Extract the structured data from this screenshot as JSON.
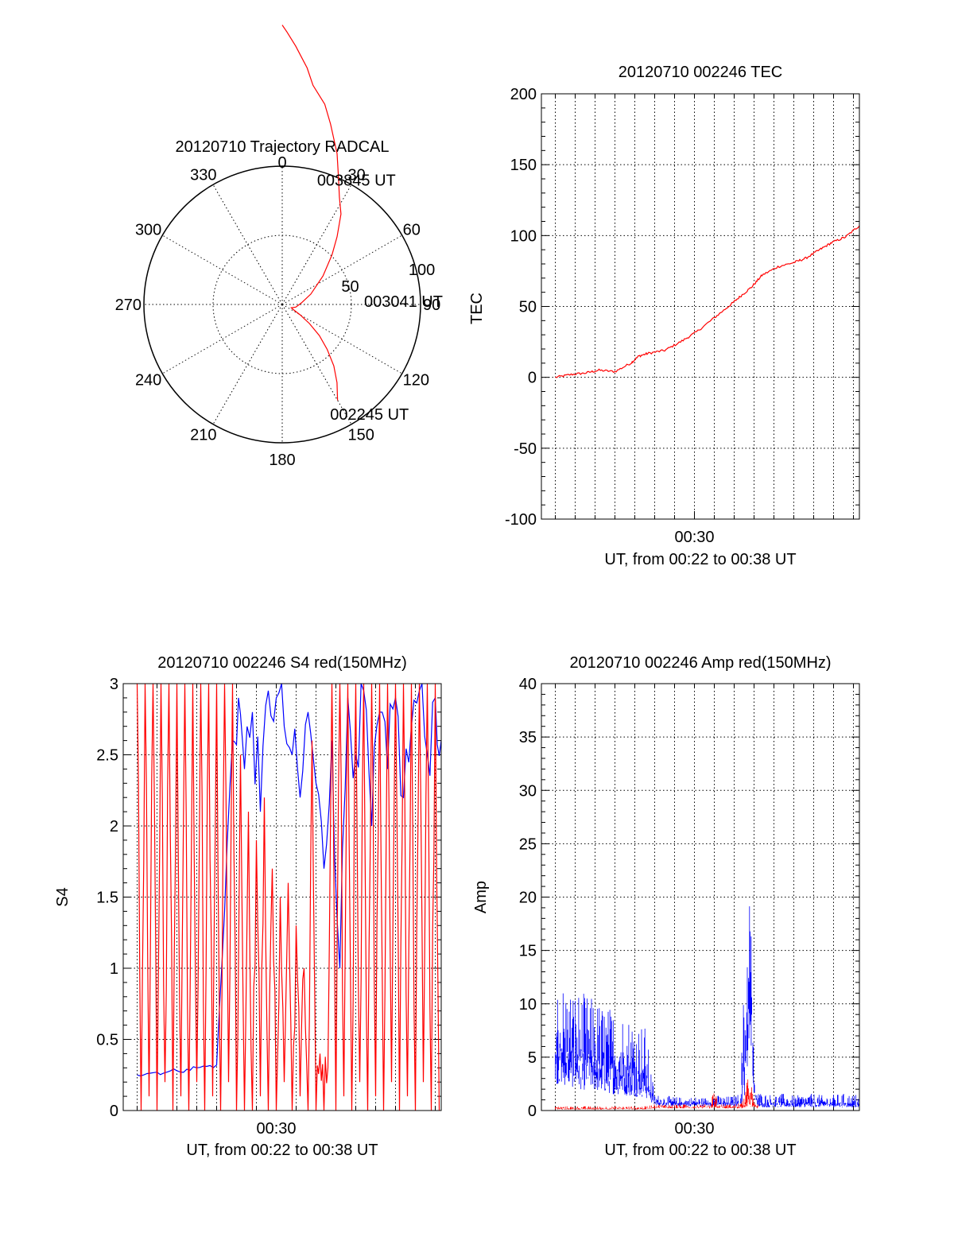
{
  "chart_data": [
    {
      "type": "polar",
      "title": "20120710 Trajectory RADCAL",
      "azimuth_labels": [
        "0",
        "30",
        "60",
        "90",
        "120",
        "150",
        "180",
        "210",
        "240",
        "270",
        "300",
        "330"
      ],
      "radial_labels": [
        "50",
        "100"
      ],
      "series": [
        {
          "color": "#ff0000",
          "points": [
            [
              150,
              80
            ],
            [
              145,
              69
            ],
            [
              140,
              58
            ],
            [
              135,
              46
            ],
            [
              130,
              35
            ],
            [
              125,
              24
            ],
            [
              120,
              15
            ],
            [
              115,
              9
            ],
            [
              110,
              7
            ],
            [
              101,
              10
            ],
            [
              85,
              14
            ],
            [
              70,
              22
            ],
            [
              55,
              36
            ],
            [
              45,
              51
            ],
            [
              39,
              63
            ],
            [
              33,
              78
            ],
            [
              28,
              88
            ],
            [
              24,
              100
            ],
            [
              20,
              116
            ],
            [
              15,
              135
            ],
            [
              12,
              148
            ],
            [
              8,
              160
            ],
            [
              6,
              172
            ],
            [
              3,
              187
            ],
            [
              1,
              197
            ],
            [
              0,
              202
            ]
          ]
        }
      ],
      "annotations": [
        {
          "text": "003845 UT",
          "az": 19,
          "r": 95
        },
        {
          "text": "003041 UT",
          "az": 88,
          "r": 65
        },
        {
          "text": "002245 UT",
          "az": 153,
          "r": 89
        }
      ]
    },
    {
      "type": "line",
      "title": "20120710 002246 TEC",
      "xlabel": "UT, from 00:22 to 00:38 UT",
      "ylabel": "TEC",
      "xlim": [
        22.3,
        38.3
      ],
      "ylim": [
        -100,
        200
      ],
      "yticks": [
        "200",
        "150",
        "100",
        "50",
        "0",
        "-50",
        "-100"
      ],
      "xticks": [
        {
          "label": "00:30",
          "value": 30
        }
      ],
      "series": [
        {
          "color": "#ff0000",
          "x": [
            23.0,
            23.8,
            24.5,
            25.2,
            26.0,
            26.8,
            27.2,
            27.7,
            28.5,
            29.3,
            30.1,
            31.0,
            31.8,
            32.3,
            32.9,
            33.4,
            34.2,
            35.0,
            35.6,
            36.3,
            36.9,
            37.6,
            38.3
          ],
          "y": [
            0,
            2,
            3,
            5,
            4,
            10,
            15,
            17,
            19,
            25,
            32,
            42,
            51,
            57,
            64,
            72,
            78,
            81,
            84,
            90,
            95,
            99,
            107
          ]
        }
      ]
    },
    {
      "type": "line",
      "title": "20120710 002246 S4 red(150MHz)",
      "xlabel": "UT, from 00:22 to 00:38 UT",
      "ylabel": "S4",
      "xlim": [
        22.3,
        38.3
      ],
      "ylim": [
        0,
        3
      ],
      "yticks": [
        "3",
        "2.5",
        "2",
        "1.5",
        "1",
        "0.5",
        "0"
      ],
      "xticks": [
        {
          "label": "00:30",
          "value": 30
        }
      ],
      "series": [
        {
          "color": "#0000ff",
          "x": [
            23.0,
            23.5,
            24.0,
            24.5,
            25.0,
            25.5,
            26.0,
            26.5,
            27.0,
            27.4,
            27.8,
            28.1,
            28.4,
            28.8,
            29.2,
            29.6,
            30.0,
            30.4,
            30.8,
            31.2,
            31.6,
            32.0,
            32.4,
            32.8,
            33.2,
            33.6,
            34.0,
            34.4,
            34.8,
            35.2,
            35.6,
            36.0,
            36.4,
            36.8,
            37.2,
            37.6,
            38.0,
            38.3
          ],
          "y": [
            0.25,
            0.26,
            0.27,
            0.27,
            0.28,
            0.29,
            0.3,
            0.31,
            0.32,
            1.4,
            2.6,
            2.9,
            2.4,
            2.8,
            2.1,
            2.95,
            2.9,
            2.7,
            2.5,
            2.2,
            2.8,
            2.3,
            1.7,
            2.6,
            1.0,
            2.9,
            2.5,
            2.95,
            2.0,
            2.8,
            2.4,
            2.9,
            2.2,
            2.7,
            2.95,
            2.5,
            2.9,
            2.6
          ]
        },
        {
          "color": "#ff0000",
          "x": [
            23.0,
            23.2,
            23.4,
            23.6,
            23.8,
            24.0,
            24.2,
            24.4,
            24.6,
            24.8,
            25.0,
            25.2,
            25.4,
            25.6,
            25.8,
            26.0,
            26.2,
            26.4,
            26.6,
            26.8,
            27.0,
            27.2,
            27.4,
            27.6,
            27.8,
            28.0,
            28.2,
            28.4,
            28.6,
            28.8,
            29.0,
            29.2,
            29.4,
            29.6,
            29.8,
            30.0,
            30.2,
            30.4,
            30.6,
            30.8,
            31.0,
            31.2,
            31.4,
            31.6,
            31.8,
            32.0,
            32.2,
            32.4,
            32.6,
            32.8,
            33.0,
            33.2,
            33.4,
            33.6,
            33.8,
            34.0,
            34.2,
            34.4,
            34.6,
            34.8,
            35.0,
            35.2,
            35.4,
            35.6,
            35.8,
            36.0,
            36.2,
            36.4,
            36.6,
            36.8,
            37.0,
            37.2,
            37.4,
            37.6,
            37.8,
            38.0,
            38.2
          ],
          "y": [
            3,
            0,
            3,
            0.1,
            3,
            0,
            3,
            0.2,
            3,
            0,
            3,
            0.1,
            3,
            0,
            3,
            0.2,
            3,
            0,
            3,
            0.1,
            3,
            0,
            3,
            0.2,
            3,
            0,
            2.5,
            0,
            2.1,
            0,
            1.9,
            0.1,
            2.2,
            0,
            1.7,
            0,
            1.5,
            0.2,
            1.6,
            0,
            1.3,
            0.1,
            1.0,
            0,
            2.6,
            0,
            0.4,
            0,
            0.3,
            3,
            0,
            3,
            0.1,
            3,
            0,
            3,
            0.2,
            3,
            0,
            3,
            0.1,
            3,
            0,
            3,
            0.2,
            3,
            0,
            3,
            0.1,
            3,
            0,
            3,
            0.2,
            3,
            0,
            3,
            0
          ]
        }
      ]
    },
    {
      "type": "line",
      "title": "20120710 002246 Amp red(150MHz)",
      "xlabel": "UT, from 00:22 to 00:38 UT",
      "ylabel": "Amp",
      "xlim": [
        22.3,
        38.3
      ],
      "ylim": [
        0,
        40
      ],
      "yticks": [
        "40",
        "35",
        "30",
        "25",
        "20",
        "15",
        "10",
        "5",
        "0"
      ],
      "xticks": [
        {
          "label": "00:30",
          "value": 30
        }
      ],
      "series": [
        {
          "color": "#0000ff",
          "style": "noisy_band",
          "x": [
            23.0,
            23.5,
            24.0,
            24.5,
            25.0,
            25.5,
            26.0,
            26.5,
            27.0,
            27.5,
            28.0,
            28.5,
            29.0,
            29.5,
            30.0,
            30.5,
            31.0,
            31.5,
            32.0,
            32.3,
            32.6,
            32.8,
            33.0,
            33.2,
            33.5,
            34.0,
            34.5,
            35.0,
            35.5,
            36.0,
            36.5,
            37.0,
            37.5,
            38.0,
            38.3
          ],
          "low": [
            2.5,
            2.3,
            2.1,
            1.9,
            1.8,
            1.6,
            1.5,
            1.4,
            1.3,
            1.2,
            0.5,
            0.4,
            0.4,
            0.4,
            0.4,
            0.4,
            0.4,
            0.4,
            0.4,
            0.4,
            1.5,
            8.0,
            1.0,
            0.3,
            0.3,
            0.3,
            0.3,
            0.3,
            0.3,
            0.3,
            0.3,
            0.3,
            0.3,
            0.3,
            0.3
          ],
          "high": [
            12.5,
            12.0,
            11.5,
            11.0,
            10.5,
            10.0,
            9.5,
            9.2,
            8.8,
            8.2,
            1.5,
            1.4,
            1.3,
            1.2,
            1.3,
            1.2,
            1.5,
            1.3,
            1.4,
            1.6,
            18.0,
            24.0,
            3.0,
            1.8,
            1.6,
            1.5,
            1.6,
            1.4,
            1.5,
            1.6,
            1.4,
            1.5,
            1.6,
            1.5,
            1.6
          ]
        },
        {
          "color": "#ff0000",
          "style": "noisy_band",
          "x": [
            23.0,
            24.0,
            25.0,
            26.0,
            27.0,
            27.5,
            28.0,
            29.0,
            30.0,
            30.8,
            31.0,
            31.2,
            32.0,
            32.4,
            32.6,
            32.8,
            33.0,
            33.2
          ],
          "low": [
            0.1,
            0.1,
            0.1,
            0.1,
            0.1,
            0.1,
            0.2,
            0.2,
            0.2,
            0.2,
            0.2,
            0.2,
            0.2,
            0.2,
            0.3,
            0.3,
            0.2,
            0.2
          ],
          "high": [
            0.4,
            0.4,
            0.4,
            0.4,
            0.4,
            0.4,
            0.6,
            0.6,
            0.6,
            0.6,
            2.5,
            0.6,
            0.6,
            0.8,
            2.5,
            3.8,
            0.8,
            0.6
          ]
        }
      ]
    }
  ]
}
